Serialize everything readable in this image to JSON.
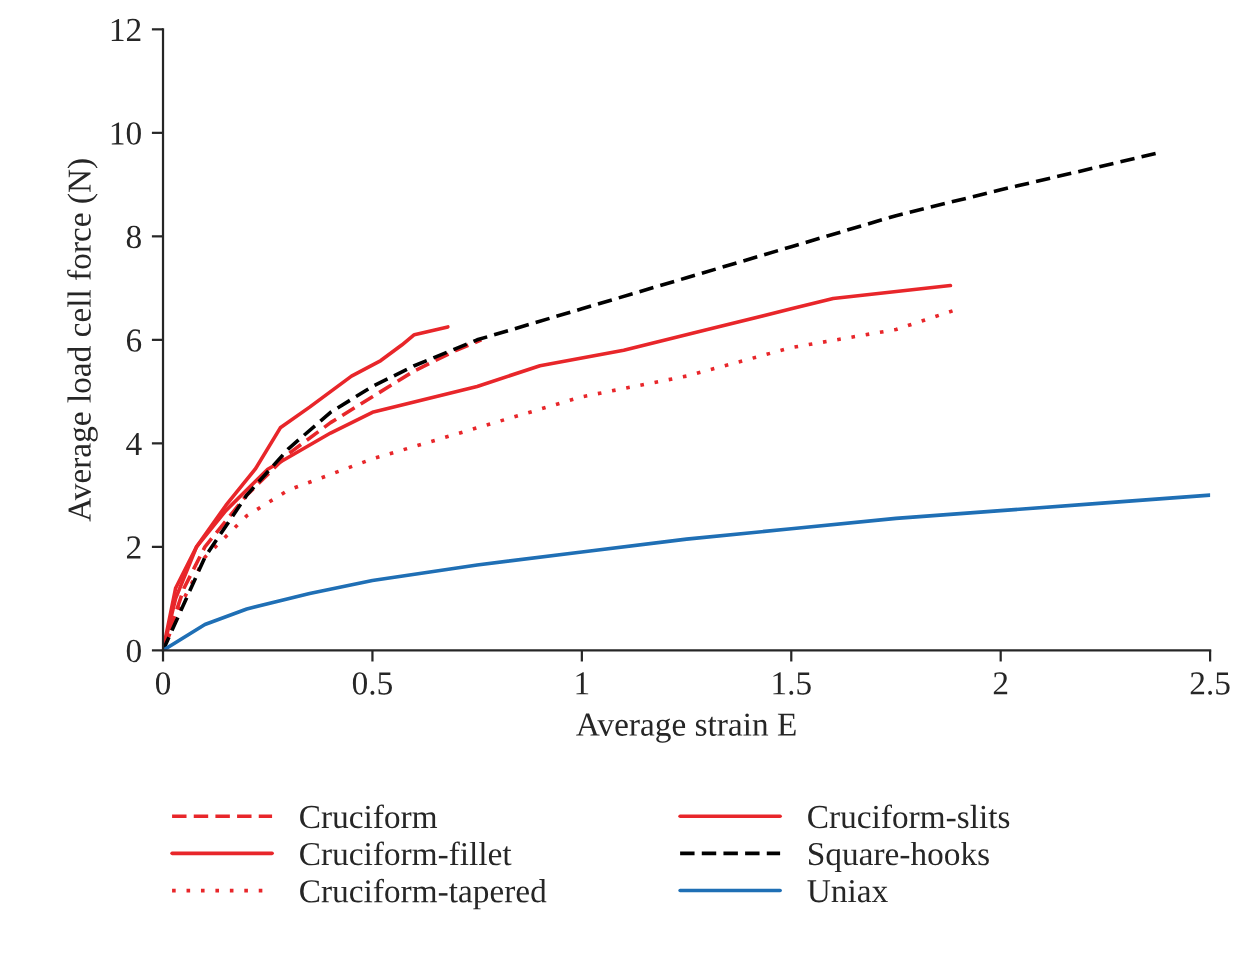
{
  "chart_data": {
    "type": "line",
    "xlabel": "Average strain E",
    "ylabel": "Average load cell force (N)",
    "xlim": [
      0,
      2.5
    ],
    "xticks": [
      0,
      0.5,
      1,
      1.5,
      2,
      2.5
    ],
    "ylim": [
      0,
      12
    ],
    "yticks": [
      0,
      2,
      4,
      6,
      8,
      10,
      12
    ],
    "grid": false,
    "legend": "bottom",
    "marker": "none",
    "series": [
      {
        "name": "Cruciform",
        "color": "#e8262a",
        "line_style": "dashed",
        "x": [
          0,
          0.05,
          0.1,
          0.2,
          0.3,
          0.4,
          0.5,
          0.6,
          0.7,
          0.76
        ],
        "values": [
          0,
          1.2,
          2.0,
          3.0,
          3.8,
          4.4,
          4.9,
          5.4,
          5.8,
          6.0
        ]
      },
      {
        "name": "Cruciform-fillet",
        "color": "#e8262a",
        "line_style": "solid",
        "x": [
          0,
          0.03,
          0.08,
          0.15,
          0.22,
          0.28,
          0.35,
          0.45,
          0.52,
          0.57,
          0.6,
          0.68
        ],
        "values": [
          0,
          1.0,
          2.0,
          2.8,
          3.5,
          4.3,
          4.7,
          5.3,
          5.6,
          5.9,
          6.1,
          6.25
        ]
      },
      {
        "name": "Cruciform-tapered",
        "color": "#e8262a",
        "line_style": "dotted",
        "x": [
          0,
          0.05,
          0.1,
          0.2,
          0.3,
          0.5,
          0.75,
          1.0,
          1.25,
          1.5,
          1.75,
          1.9
        ],
        "values": [
          0,
          1.0,
          1.8,
          2.6,
          3.1,
          3.7,
          4.3,
          4.9,
          5.3,
          5.85,
          6.2,
          6.6
        ]
      },
      {
        "name": "Cruciform-slits",
        "color": "#e8262a",
        "line_style": "solid",
        "x": [
          0,
          0.03,
          0.08,
          0.15,
          0.25,
          0.4,
          0.5,
          0.75,
          0.9,
          1.1,
          1.3,
          1.5,
          1.6,
          1.88
        ],
        "values": [
          0,
          1.2,
          2.0,
          2.7,
          3.5,
          4.2,
          4.6,
          5.1,
          5.5,
          5.8,
          6.2,
          6.6,
          6.8,
          7.05
        ]
      },
      {
        "name": "Square-hooks",
        "color": "#000000",
        "line_style": "dashed",
        "x": [
          0,
          0.1,
          0.2,
          0.3,
          0.4,
          0.5,
          0.6,
          0.75,
          1.0,
          1.25,
          1.5,
          1.75,
          2.0,
          2.37
        ],
        "values": [
          0,
          1.8,
          3.0,
          3.9,
          4.6,
          5.1,
          5.5,
          6.0,
          6.6,
          7.2,
          7.8,
          8.4,
          8.9,
          9.6
        ]
      },
      {
        "name": "Uniax",
        "color": "#1f6fb5",
        "line_style": "solid",
        "x": [
          0,
          0.1,
          0.2,
          0.35,
          0.5,
          0.75,
          1.0,
          1.25,
          1.5,
          1.75,
          2.0,
          2.25,
          2.5
        ],
        "values": [
          0,
          0.5,
          0.8,
          1.1,
          1.35,
          1.65,
          1.9,
          2.15,
          2.35,
          2.55,
          2.7,
          2.85,
          3.0
        ]
      }
    ]
  }
}
